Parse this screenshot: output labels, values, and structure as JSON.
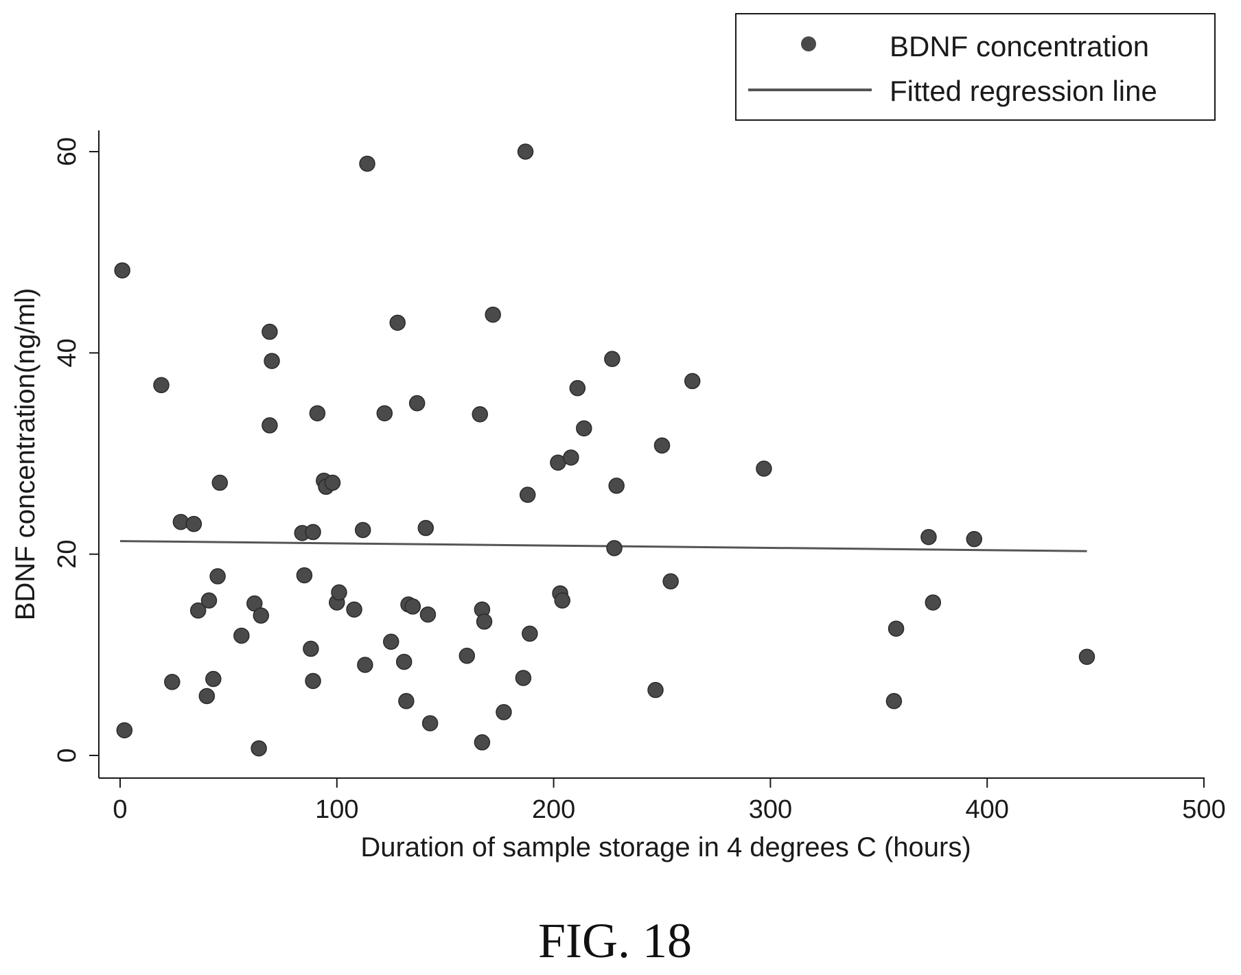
{
  "figure": {
    "caption": "FIG. 18"
  },
  "chart_data": {
    "type": "scatter",
    "xlabel": "Duration of sample storage in 4 degrees C (hours)",
    "ylabel": "BDNF concentration(ng/ml)",
    "xlim": [
      0,
      500
    ],
    "ylim": [
      0,
      60
    ],
    "x_ticks": [
      "0",
      "100",
      "200",
      "300",
      "400",
      "500"
    ],
    "y_ticks": [
      "0",
      "20",
      "40",
      "60"
    ],
    "grid": false,
    "legend_position": "top-right",
    "series": [
      {
        "name": "BDNF concentration",
        "kind": "points",
        "color": "#4a4a4a",
        "points": [
          [
            1,
            48.2
          ],
          [
            2,
            2.5
          ],
          [
            19,
            36.8
          ],
          [
            24,
            7.3
          ],
          [
            28,
            23.2
          ],
          [
            34,
            23.0
          ],
          [
            36,
            14.4
          ],
          [
            40,
            5.9
          ],
          [
            41,
            15.4
          ],
          [
            43,
            7.6
          ],
          [
            45,
            17.8
          ],
          [
            46,
            27.1
          ],
          [
            56,
            11.9
          ],
          [
            62,
            15.1
          ],
          [
            64,
            0.7
          ],
          [
            65,
            13.9
          ],
          [
            69,
            42.1
          ],
          [
            70,
            39.2
          ],
          [
            69,
            32.8
          ],
          [
            84,
            22.1
          ],
          [
            85,
            17.9
          ],
          [
            88,
            10.6
          ],
          [
            89,
            22.2
          ],
          [
            89,
            7.4
          ],
          [
            91,
            34.0
          ],
          [
            94,
            27.3
          ],
          [
            95,
            26.7
          ],
          [
            98,
            27.1
          ],
          [
            100,
            15.2
          ],
          [
            101,
            16.2
          ],
          [
            108,
            14.5
          ],
          [
            112,
            22.4
          ],
          [
            113,
            9.0
          ],
          [
            114,
            58.8
          ],
          [
            122,
            34.0
          ],
          [
            125,
            11.3
          ],
          [
            128,
            43.0
          ],
          [
            131,
            9.3
          ],
          [
            132,
            5.4
          ],
          [
            133,
            15.0
          ],
          [
            135,
            14.8
          ],
          [
            137,
            35.0
          ],
          [
            141,
            22.6
          ],
          [
            142,
            14.0
          ],
          [
            143,
            3.2
          ],
          [
            160,
            9.9
          ],
          [
            166,
            33.9
          ],
          [
            167,
            1.3
          ],
          [
            167,
            14.5
          ],
          [
            168,
            13.3
          ],
          [
            172,
            43.8
          ],
          [
            177,
            4.3
          ],
          [
            186,
            7.7
          ],
          [
            187,
            60.0
          ],
          [
            188,
            25.9
          ],
          [
            189,
            12.1
          ],
          [
            202,
            29.1
          ],
          [
            203,
            16.1
          ],
          [
            204,
            15.4
          ],
          [
            208,
            29.6
          ],
          [
            211,
            36.5
          ],
          [
            214,
            32.5
          ],
          [
            227,
            39.4
          ],
          [
            228,
            20.6
          ],
          [
            229,
            26.8
          ],
          [
            247,
            6.5
          ],
          [
            250,
            30.8
          ],
          [
            254,
            17.3
          ],
          [
            264,
            37.2
          ],
          [
            297,
            28.5
          ],
          [
            357,
            5.4
          ],
          [
            358,
            12.6
          ],
          [
            373,
            21.7
          ],
          [
            375,
            15.2
          ],
          [
            394,
            21.5
          ],
          [
            446,
            9.8
          ]
        ]
      },
      {
        "name": "Fitted regression line",
        "kind": "line",
        "color": "#555555",
        "points": [
          [
            0,
            21.3
          ],
          [
            446,
            20.3
          ]
        ]
      }
    ]
  }
}
